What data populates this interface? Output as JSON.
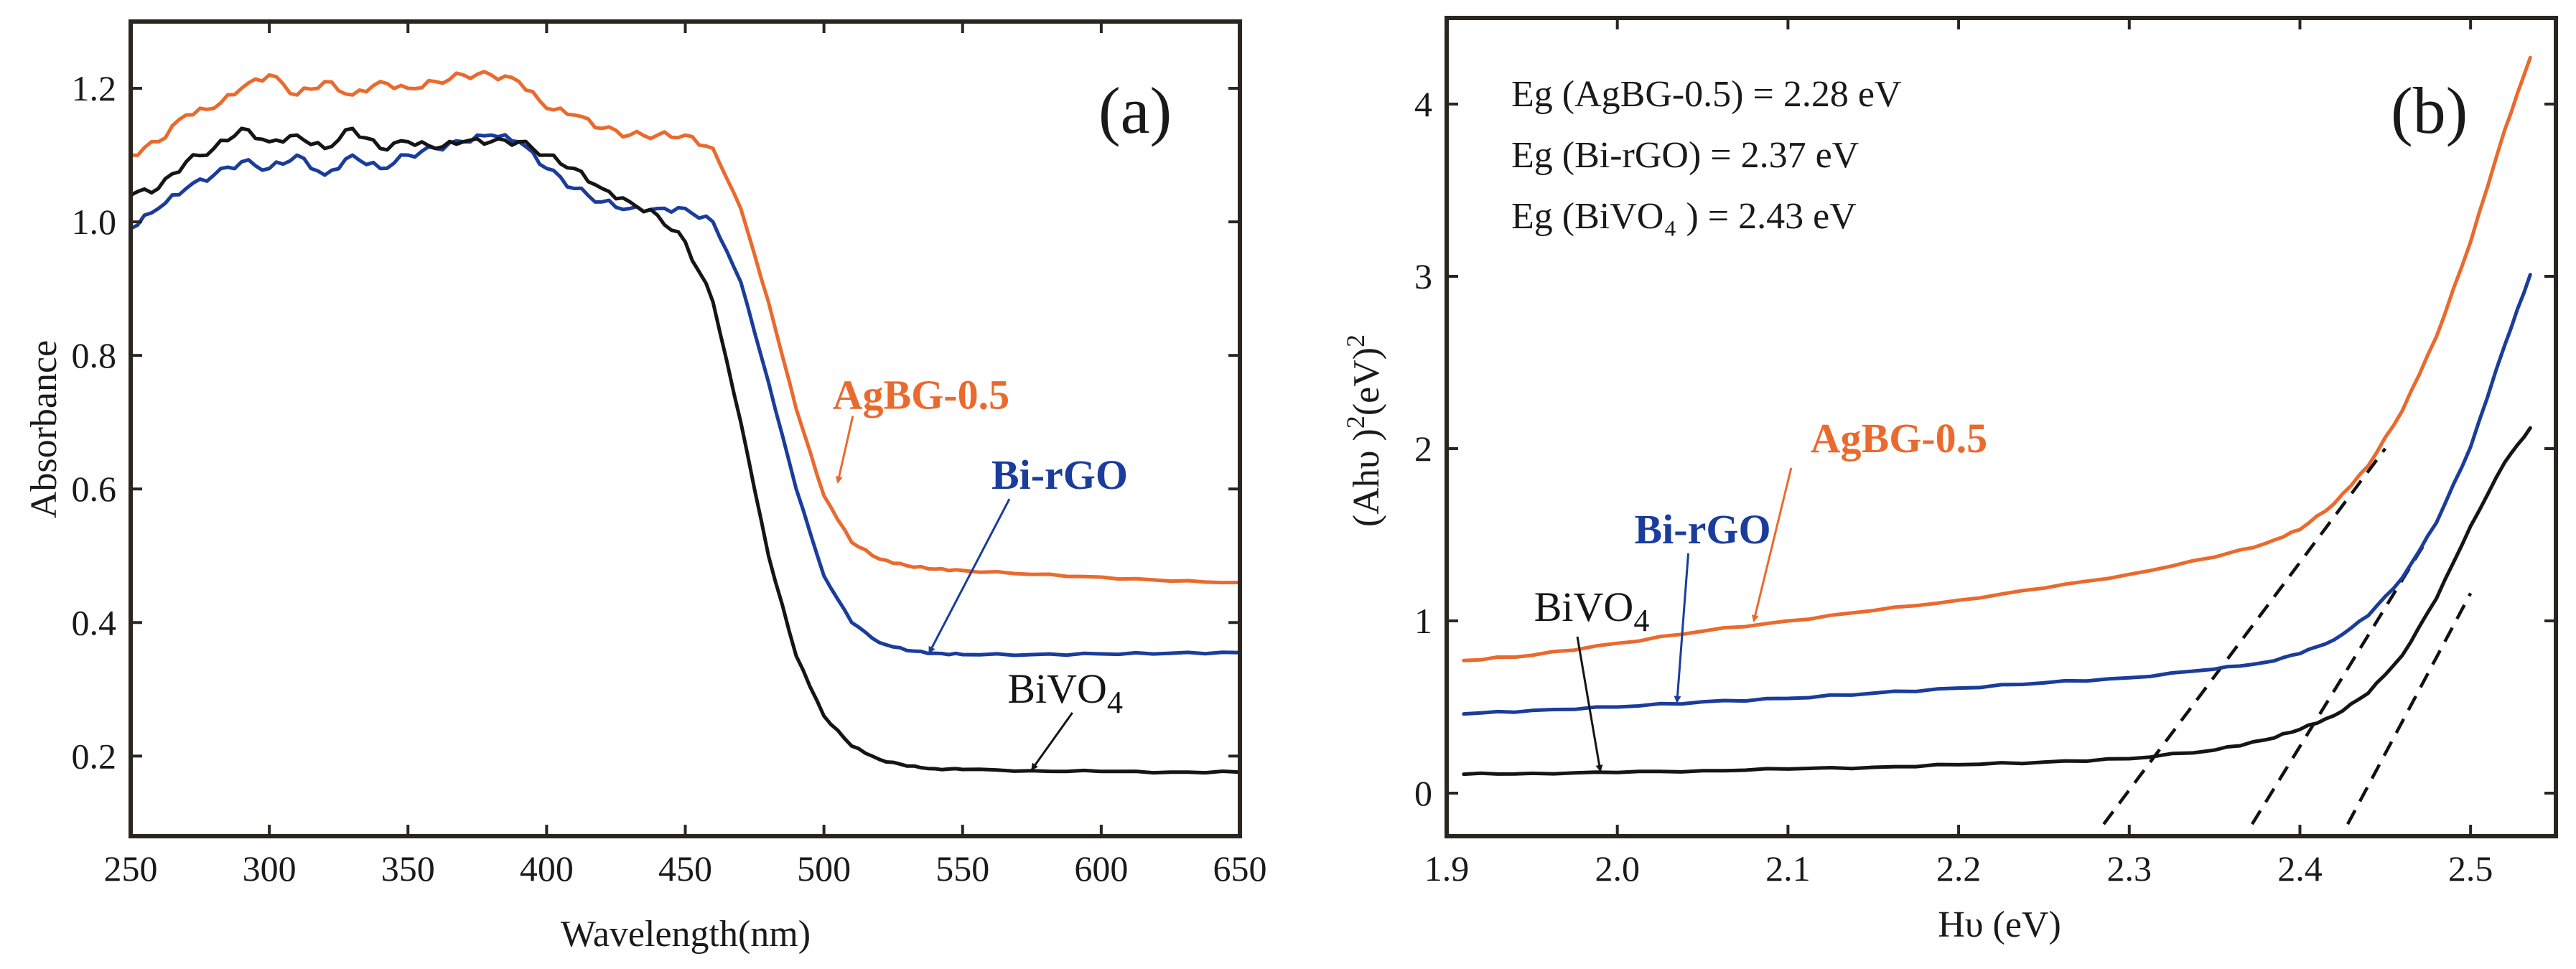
{
  "colors": {
    "agbg": "#ea6a2e",
    "birgo": "#1a3d9c",
    "bivo4": "#151515",
    "frame": "#2b2520"
  },
  "chart_data": [
    {
      "panel": "(a)",
      "type": "line",
      "title": "",
      "xlabel": "Wavelength(nm)",
      "ylabel": "Absorbance",
      "xlim": [
        250,
        650
      ],
      "ylim": [
        0.08,
        1.3
      ],
      "x_ticks": [
        250,
        300,
        350,
        400,
        450,
        500,
        550,
        600,
        650
      ],
      "y_ticks": [
        0.2,
        0.4,
        0.6,
        0.8,
        1.0,
        1.2
      ],
      "x_tick_labels": [
        "250",
        "300",
        "350",
        "400",
        "450",
        "500",
        "550",
        "600",
        "650"
      ],
      "y_tick_labels": [
        "0.2",
        "0.4",
        "0.6",
        "0.8",
        "1.0",
        "1.2"
      ],
      "grid": false,
      "series": [
        {
          "name": "AgBG-0.5",
          "label_text": "AgBG-0.5",
          "color_key": "agbg",
          "x": [
            250,
            260,
            270,
            280,
            290,
            300,
            310,
            320,
            330,
            340,
            350,
            360,
            370,
            380,
            390,
            400,
            410,
            420,
            430,
            440,
            450,
            460,
            470,
            480,
            490,
            500,
            510,
            520,
            530,
            540,
            550,
            575,
            600,
            625,
            650
          ],
          "y": [
            1.1,
            1.12,
            1.16,
            1.17,
            1.2,
            1.22,
            1.19,
            1.21,
            1.19,
            1.21,
            1.2,
            1.21,
            1.22,
            1.22,
            1.21,
            1.17,
            1.16,
            1.14,
            1.13,
            1.13,
            1.13,
            1.11,
            1.02,
            0.88,
            0.72,
            0.59,
            0.52,
            0.495,
            0.485,
            0.48,
            0.478,
            0.472,
            0.468,
            0.462,
            0.46
          ],
          "label_pos_data": [
            535,
            0.72
          ],
          "arrow_to": [
            505,
            0.61
          ]
        },
        {
          "name": "Bi-rGO",
          "label_text": "Bi-rGO",
          "color_key": "birgo",
          "x": [
            250,
            260,
            270,
            280,
            290,
            300,
            310,
            320,
            330,
            340,
            350,
            360,
            370,
            380,
            390,
            400,
            410,
            420,
            430,
            440,
            450,
            460,
            470,
            480,
            490,
            500,
            510,
            520,
            530,
            540,
            550,
            575,
            600,
            625,
            650
          ],
          "y": [
            0.99,
            1.02,
            1.05,
            1.07,
            1.09,
            1.08,
            1.1,
            1.07,
            1.1,
            1.08,
            1.1,
            1.11,
            1.12,
            1.13,
            1.12,
            1.08,
            1.05,
            1.03,
            1.02,
            1.02,
            1.02,
            1.0,
            0.91,
            0.76,
            0.6,
            0.47,
            0.4,
            0.37,
            0.358,
            0.354,
            0.352,
            0.352,
            0.353,
            0.354,
            0.355
          ],
          "label_pos_data": [
            585,
            0.6
          ],
          "arrow_to": [
            538,
            0.355
          ]
        },
        {
          "name": "BiVO4",
          "label_text": "BiVO",
          "label_sub": "4",
          "color_key": "bivo4",
          "x": [
            250,
            260,
            270,
            280,
            290,
            300,
            310,
            320,
            330,
            340,
            350,
            360,
            370,
            380,
            390,
            400,
            410,
            420,
            430,
            440,
            450,
            460,
            470,
            480,
            490,
            500,
            510,
            520,
            530,
            540,
            550,
            575,
            600,
            625,
            650
          ],
          "y": [
            1.04,
            1.05,
            1.09,
            1.11,
            1.14,
            1.12,
            1.13,
            1.11,
            1.14,
            1.11,
            1.12,
            1.11,
            1.12,
            1.12,
            1.12,
            1.1,
            1.08,
            1.05,
            1.03,
            1.01,
            0.97,
            0.88,
            0.7,
            0.5,
            0.35,
            0.26,
            0.215,
            0.195,
            0.185,
            0.181,
            0.18,
            0.178,
            0.177,
            0.176,
            0.176
          ],
          "label_pos_data": [
            587,
            0.28
          ],
          "arrow_to": [
            575,
            0.18
          ]
        }
      ]
    },
    {
      "panel": "(b)",
      "type": "line",
      "title": "",
      "xlabel": "Hυ (eV)",
      "ylabel_parts": [
        "(Ahυ )",
        "2",
        "(eV)",
        "2"
      ],
      "xlim": [
        1.9,
        2.55
      ],
      "ylim": [
        -0.25,
        4.5
      ],
      "x_ticks": [
        1.9,
        2.0,
        2.1,
        2.2,
        2.3,
        2.4,
        2.5
      ],
      "y_ticks": [
        0,
        1,
        2,
        3,
        4
      ],
      "x_tick_labels": [
        "1.9",
        "2.0",
        "2.1",
        "2.2",
        "2.3",
        "2.4",
        "2.5"
      ],
      "y_tick_labels": [
        "0",
        "1",
        "2",
        "3",
        "4"
      ],
      "grid": false,
      "annotations": {
        "eg_lines": [
          "Eg (AgBG-0.5) = 2.28 eV",
          "Eg (Bi-rGO) = 2.37 eV",
          "Eg (BiVO₄ ) = 2.43 eV"
        ]
      },
      "series": [
        {
          "name": "AgBG-0.5",
          "label_text": "AgBG-0.5",
          "color_key": "agbg",
          "x": [
            1.91,
            1.95,
            2.0,
            2.05,
            2.1,
            2.15,
            2.2,
            2.25,
            2.3,
            2.35,
            2.38,
            2.4,
            2.42,
            2.44,
            2.46,
            2.48,
            2.5,
            2.52,
            2.535
          ],
          "y": [
            0.77,
            0.8,
            0.87,
            0.94,
            1.0,
            1.06,
            1.12,
            1.19,
            1.27,
            1.37,
            1.45,
            1.53,
            1.68,
            1.9,
            2.22,
            2.65,
            3.2,
            3.85,
            4.27
          ],
          "label_pos_data": [
            2.165,
            1.98
          ],
          "arrow_to": [
            2.08,
            1.0
          ],
          "fit_line": {
            "x": [
              2.285,
              2.45
            ],
            "y": [
              -0.18,
              2.0
            ]
          }
        },
        {
          "name": "Bi-rGO",
          "label_text": "Bi-rGO",
          "color_key": "birgo",
          "x": [
            1.91,
            1.95,
            2.0,
            2.05,
            2.1,
            2.15,
            2.2,
            2.25,
            2.3,
            2.35,
            2.38,
            2.4,
            2.42,
            2.44,
            2.46,
            2.48,
            2.5,
            2.52,
            2.535
          ],
          "y": [
            0.46,
            0.48,
            0.5,
            0.53,
            0.55,
            0.58,
            0.61,
            0.64,
            0.67,
            0.72,
            0.76,
            0.81,
            0.89,
            1.03,
            1.25,
            1.57,
            2.01,
            2.6,
            3.01
          ],
          "label_pos_data": [
            2.05,
            1.45
          ],
          "arrow_to": [
            2.035,
            0.53
          ],
          "fit_line": {
            "x": [
              2.372,
              2.475
            ],
            "y": [
              -0.18,
              1.48
            ]
          }
        },
        {
          "name": "BiVO4",
          "label_text": "BiVO",
          "label_sub": "4",
          "color_key": "bivo4",
          "x": [
            1.91,
            1.95,
            2.0,
            2.05,
            2.1,
            2.15,
            2.2,
            2.25,
            2.3,
            2.35,
            2.38,
            2.4,
            2.42,
            2.44,
            2.46,
            2.48,
            2.5,
            2.52,
            2.535
          ],
          "y": [
            0.11,
            0.115,
            0.12,
            0.13,
            0.14,
            0.15,
            0.165,
            0.18,
            0.2,
            0.25,
            0.31,
            0.37,
            0.45,
            0.58,
            0.8,
            1.13,
            1.55,
            1.92,
            2.12
          ],
          "label_pos_data": [
            1.985,
            1.0
          ],
          "arrow_to": [
            1.99,
            0.13
          ],
          "fit_line": {
            "x": [
              2.428,
              2.5
            ],
            "y": [
              -0.18,
              1.16
            ]
          }
        }
      ]
    }
  ]
}
